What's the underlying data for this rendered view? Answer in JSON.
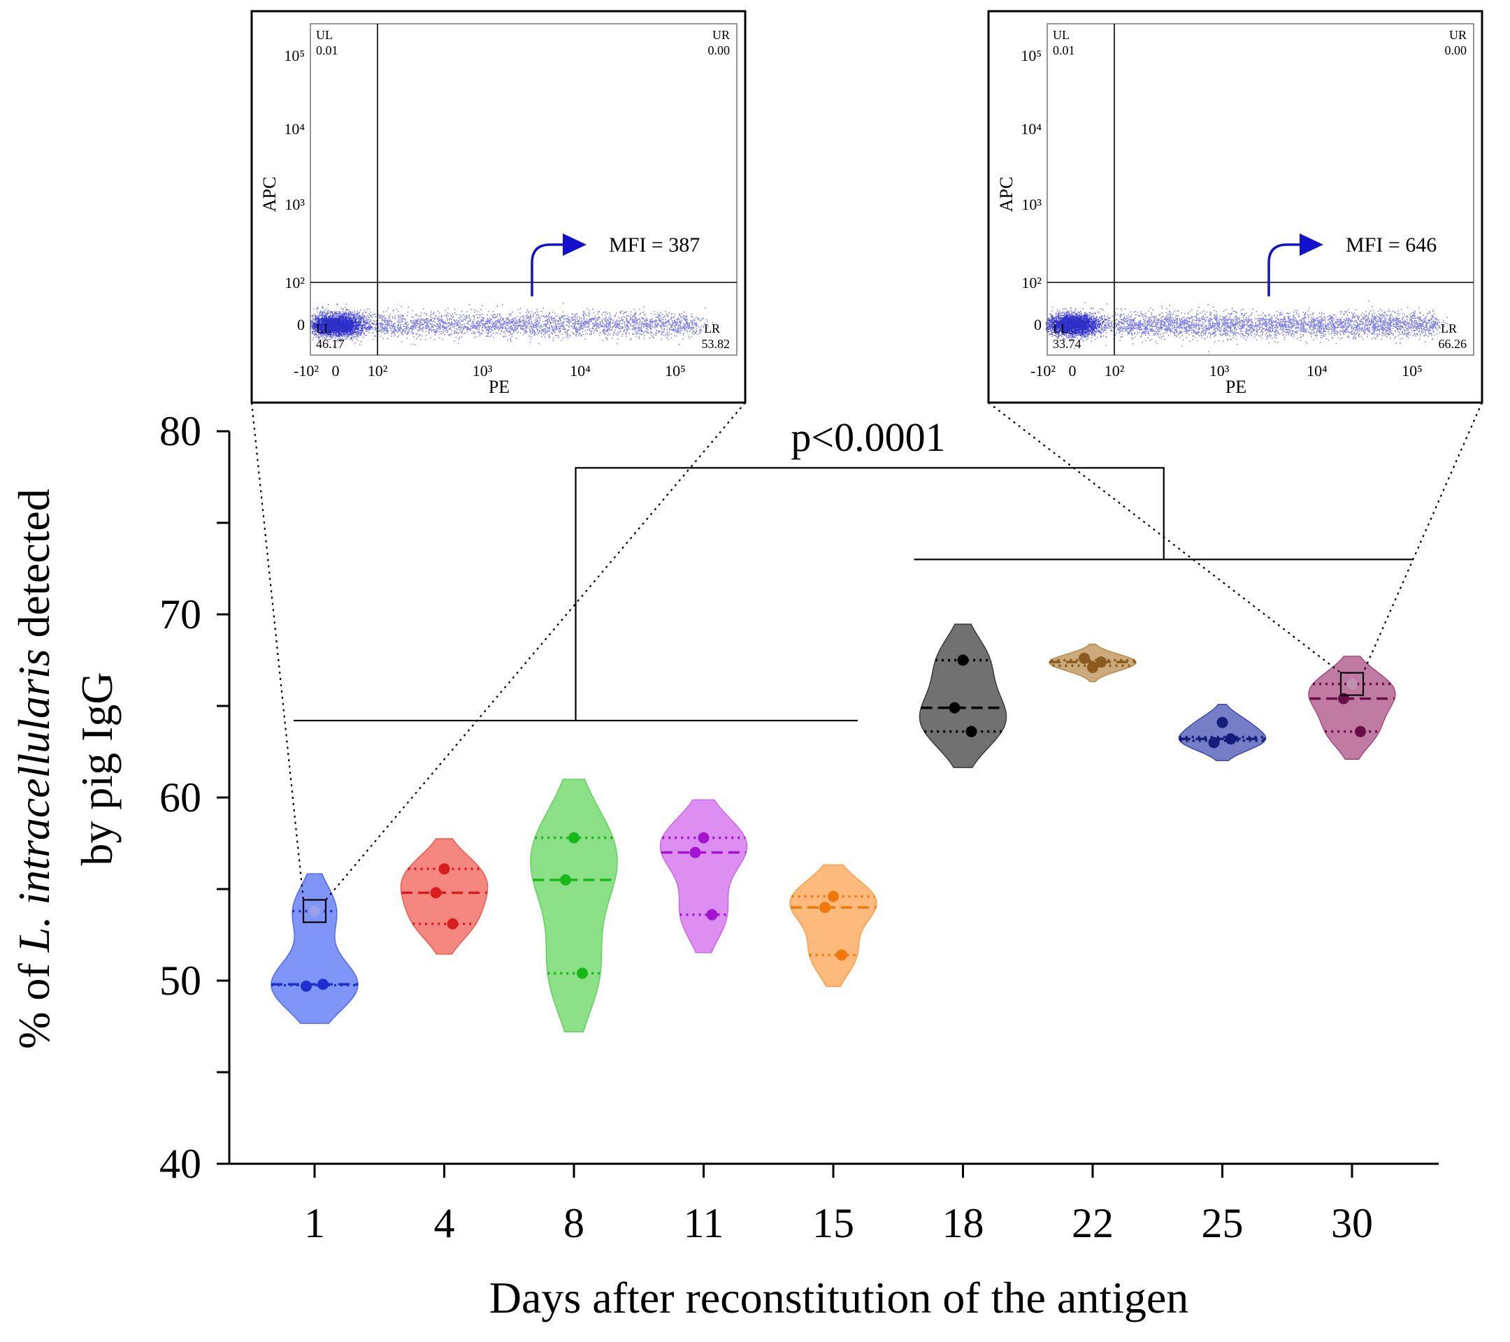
{
  "chart_data": {
    "type": "violin",
    "ylabel_line1_prefix": "% of ",
    "ylabel_line1_italic": "L. intracellularis",
    "ylabel_line1_suffix": " detected",
    "ylabel_line2": "by pig IgG",
    "xlabel": "Days after reconstitution of the antigen",
    "ylim": [
      40,
      80
    ],
    "y_ticks": [
      40,
      50,
      60,
      70,
      80
    ],
    "categories": [
      "1",
      "4",
      "8",
      "11",
      "15",
      "18",
      "22",
      "25",
      "30"
    ],
    "series": [
      {
        "name": "1",
        "color": "#4f6cf5",
        "dark": "#1f2fd0",
        "points": [
          53.8,
          49.7,
          49.8
        ],
        "median": 49.8,
        "q1": 49.75,
        "q3": 53.8,
        "min": 49.7,
        "max": 53.8
      },
      {
        "name": "4",
        "color": "#f05a50",
        "dark": "#d81f1f",
        "points": [
          56.1,
          54.8,
          53.1
        ],
        "median": 54.8,
        "q1": 53.1,
        "q3": 56.1,
        "min": 53.1,
        "max": 56.1
      },
      {
        "name": "8",
        "color": "#5ed45a",
        "dark": "#18b818",
        "points": [
          57.8,
          55.5,
          50.4
        ],
        "median": 55.5,
        "q1": 50.4,
        "q3": 57.8,
        "min": 50.4,
        "max": 57.8
      },
      {
        "name": "11",
        "color": "#d063ec",
        "dark": "#a214cf",
        "points": [
          57.8,
          57.0,
          53.6
        ],
        "median": 57.0,
        "q1": 53.6,
        "q3": 57.8,
        "min": 53.6,
        "max": 57.8
      },
      {
        "name": "15",
        "color": "#fd9f4a",
        "dark": "#f0780d",
        "points": [
          54.6,
          54.0,
          51.4
        ],
        "median": 54.0,
        "q1": 51.4,
        "q3": 54.6,
        "min": 51.4,
        "max": 54.6
      },
      {
        "name": "18",
        "color": "#3a3a3a",
        "dark": "#000000",
        "points": [
          67.5,
          64.9,
          63.6
        ],
        "median": 64.9,
        "q1": 63.6,
        "q3": 67.5,
        "min": 63.6,
        "max": 67.5
      },
      {
        "name": "22",
        "color": "#b8894a",
        "dark": "#8a5a1e",
        "points": [
          67.1,
          67.6,
          67.4
        ],
        "median": 67.4,
        "q1": 67.2,
        "q3": 67.5,
        "min": 67.1,
        "max": 67.6
      },
      {
        "name": "25",
        "color": "#3e4bb0",
        "dark": "#141e78",
        "points": [
          64.1,
          63.0,
          63.2
        ],
        "median": 63.2,
        "q1": 63.1,
        "q3": 63.3,
        "min": 63.0,
        "max": 64.1
      },
      {
        "name": "30",
        "color": "#a7487f",
        "dark": "#6a0e4a",
        "points": [
          66.2,
          65.4,
          63.6
        ],
        "median": 65.4,
        "q1": 63.6,
        "q3": 66.2,
        "min": 63.6,
        "max": 66.2
      }
    ],
    "significance": {
      "label": "p<0.0001",
      "group_a": [
        "1",
        "4",
        "8",
        "11",
        "15"
      ],
      "group_b": [
        "18",
        "22",
        "25",
        "30"
      ],
      "bar_y": 78,
      "group_a_y": 64.2,
      "group_b_y": 73
    },
    "highlighted_points": [
      {
        "category": "1",
        "value": 53.8,
        "inset": 0
      },
      {
        "category": "30",
        "value": 66.2,
        "inset": 1
      }
    ],
    "insets": [
      {
        "type": "flow-cytometry-dotplot",
        "xlabel": "PE",
        "ylabel": "APC",
        "x_tick_labels": [
          "-10²",
          "0",
          "10²",
          "10³",
          "10⁴",
          "10⁵"
        ],
        "y_tick_labels": [
          "10⁵",
          "10⁴",
          "10³",
          "10²",
          "0"
        ],
        "quadrants": {
          "UL": "0.01",
          "UR": "0.00",
          "LL": "46.17",
          "LR": "53.82"
        },
        "quadrant_names": {
          "UL": "UL",
          "UR": "UR",
          "LL": "LL",
          "LR": "LR"
        },
        "mfi_label": "MFI = 387",
        "mfi": 387
      },
      {
        "type": "flow-cytometry-dotplot",
        "xlabel": "PE",
        "ylabel": "APC",
        "x_tick_labels": [
          "-10²",
          "0",
          "10²",
          "10³",
          "10⁴",
          "10⁵"
        ],
        "y_tick_labels": [
          "10⁵",
          "10⁴",
          "10³",
          "10²",
          "0"
        ],
        "quadrants": {
          "UL": "0.01",
          "UR": "0.00",
          "LL": "33.74",
          "LR": "66.26"
        },
        "quadrant_names": {
          "UL": "UL",
          "UR": "UR",
          "LL": "LL",
          "LR": "LR"
        },
        "mfi_label": "MFI = 646",
        "mfi": 646
      }
    ]
  }
}
